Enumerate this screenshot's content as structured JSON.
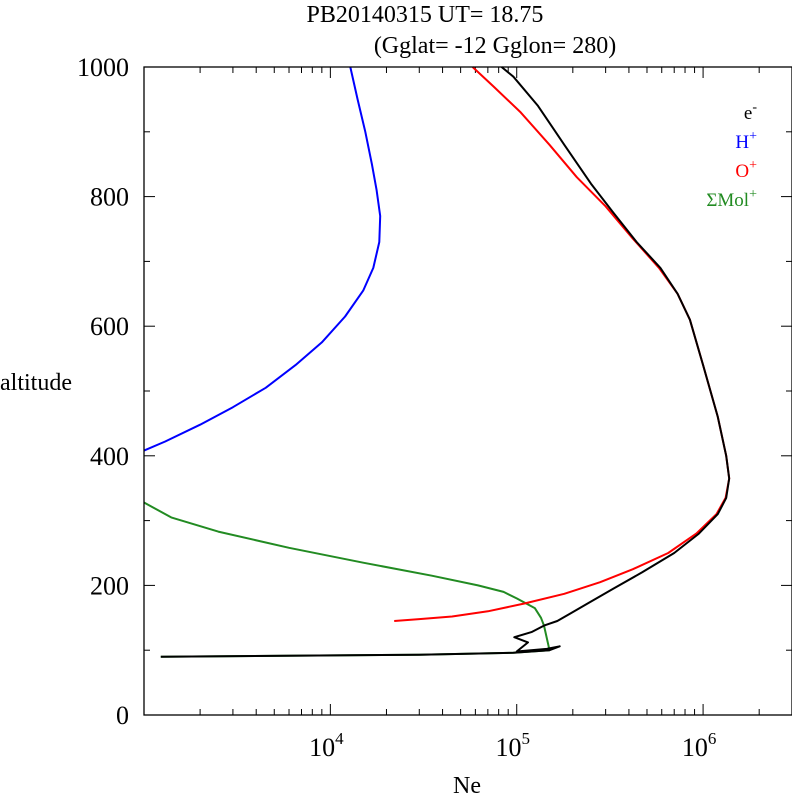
{
  "chart_data": {
    "type": "line",
    "title_line1": "PB20140315   UT=  18.75",
    "title_line2": "(Gglat= -12   Gglon=  280)",
    "xlabel": "Ne",
    "ylabel": "altitude",
    "x_scale": "log",
    "xlim": [
      1000,
      3000000
    ],
    "ylim": [
      0,
      1000
    ],
    "y_ticks": [
      {
        "value": 0,
        "label": "0"
      },
      {
        "value": 200,
        "label": "200"
      },
      {
        "value": 400,
        "label": "400"
      },
      {
        "value": 600,
        "label": "600"
      },
      {
        "value": 800,
        "label": "800"
      },
      {
        "value": 1000,
        "label": "1000"
      }
    ],
    "y_minor_step": 100,
    "x_major_ticks": [
      {
        "value": 10000,
        "base": "10",
        "exp": "4"
      },
      {
        "value": 100000,
        "base": "10",
        "exp": "5"
      },
      {
        "value": 1000000,
        "base": "10",
        "exp": "6"
      }
    ],
    "legend_position": "top-right",
    "series": [
      {
        "name": "e",
        "name_sup": "-",
        "color": "#000000",
        "points": [
          [
            1230,
            90
          ],
          [
            30000,
            93
          ],
          [
            96000,
            96
          ],
          [
            150000,
            100
          ],
          [
            170000,
            106
          ],
          [
            145000,
            102
          ],
          [
            100000,
            98
          ],
          [
            115000,
            112
          ],
          [
            97000,
            120
          ],
          [
            120000,
            128
          ],
          [
            140000,
            138
          ],
          [
            165000,
            145
          ],
          [
            195000,
            157
          ],
          [
            240000,
            172
          ],
          [
            330000,
            195
          ],
          [
            470000,
            220
          ],
          [
            700000,
            250
          ],
          [
            950000,
            280
          ],
          [
            1200000,
            310
          ],
          [
            1330000,
            335
          ],
          [
            1380000,
            365
          ],
          [
            1330000,
            400
          ],
          [
            1200000,
            460
          ],
          [
            1000000,
            540
          ],
          [
            850000,
            610
          ],
          [
            730000,
            650
          ],
          [
            590000,
            690
          ],
          [
            440000,
            730
          ],
          [
            330000,
            775
          ],
          [
            250000,
            820
          ],
          [
            180000,
            880
          ],
          [
            130000,
            940
          ],
          [
            96000,
            985
          ],
          [
            83000,
            1000
          ]
        ]
      },
      {
        "name": "H",
        "name_sup": "+",
        "color": "#0000ff",
        "points": [
          [
            1000,
            408
          ],
          [
            1300,
            422
          ],
          [
            2000,
            448
          ],
          [
            3000,
            475
          ],
          [
            4500,
            505
          ],
          [
            6500,
            540
          ],
          [
            9000,
            575
          ],
          [
            12000,
            615
          ],
          [
            15000,
            655
          ],
          [
            17000,
            690
          ],
          [
            18300,
            730
          ],
          [
            18500,
            770
          ],
          [
            17700,
            810
          ],
          [
            16700,
            850
          ],
          [
            15400,
            900
          ],
          [
            14000,
            950
          ],
          [
            12800,
            1000
          ]
        ]
      },
      {
        "name": "O",
        "name_sup": "+",
        "color": "#ff0000",
        "points": [
          [
            22000,
            145
          ],
          [
            30000,
            148
          ],
          [
            45000,
            152
          ],
          [
            70000,
            160
          ],
          [
            110000,
            172
          ],
          [
            180000,
            187
          ],
          [
            280000,
            205
          ],
          [
            420000,
            225
          ],
          [
            650000,
            250
          ],
          [
            920000,
            280
          ],
          [
            1180000,
            310
          ],
          [
            1320000,
            335
          ],
          [
            1380000,
            365
          ],
          [
            1330000,
            400
          ],
          [
            1200000,
            460
          ],
          [
            1000000,
            540
          ],
          [
            850000,
            610
          ],
          [
            730000,
            650
          ],
          [
            580000,
            690
          ],
          [
            420000,
            735
          ],
          [
            300000,
            785
          ],
          [
            210000,
            830
          ],
          [
            150000,
            880
          ],
          [
            105000,
            930
          ],
          [
            75000,
            970
          ],
          [
            58000,
            1000
          ]
        ]
      },
      {
        "name": "ΣMol",
        "name_sup": "+",
        "color": "#228b22",
        "points": [
          [
            1230,
            90
          ],
          [
            30000,
            93
          ],
          [
            96000,
            96
          ],
          [
            150000,
            100
          ],
          [
            140000,
            138
          ],
          [
            135000,
            150
          ],
          [
            125000,
            165
          ],
          [
            100000,
            180
          ],
          [
            85000,
            190
          ],
          [
            62000,
            200
          ],
          [
            35000,
            215
          ],
          [
            15000,
            235
          ],
          [
            6000,
            258
          ],
          [
            2500,
            283
          ],
          [
            1400,
            305
          ],
          [
            1000,
            328
          ]
        ]
      }
    ]
  }
}
